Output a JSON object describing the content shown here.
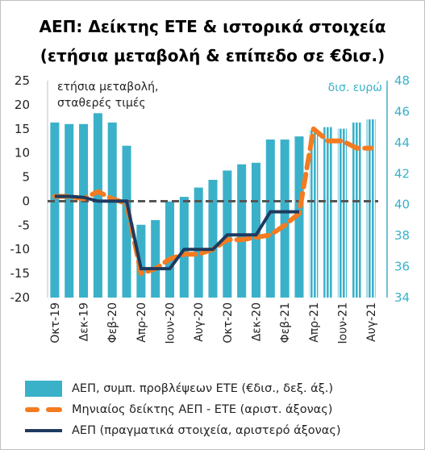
{
  "title_line1": "ΑΕΠ: Δείκτης ΕΤΕ & ιστορικά στοιχεία",
  "title_line2": "(ετήσια μεταβολή & επίπεδο σε €δισ.)",
  "colors": {
    "bars": "#3bb1c9",
    "monthly_index": "#f47b20",
    "actual": "#1f3a5f",
    "zero_line": "#555555",
    "right_axis": "#3bb1c9"
  },
  "chart_data": {
    "type": "bar+line",
    "title": "ΑΕΠ: Δείκτης ΕΤΕ & ιστορικά στοιχεία (ετήσια μεταβολή & επίπεδο σε €δισ.)",
    "left_axis": {
      "label_lines": [
        "ετήσια μεταβολή,",
        "σταθερές τιμές"
      ],
      "ylim": [
        -20,
        25
      ],
      "ticks": [
        -20,
        -15,
        -10,
        -5,
        0,
        5,
        10,
        15,
        20,
        25
      ]
    },
    "right_axis": {
      "label": "δισ. ευρώ",
      "ylim": [
        34,
        48
      ],
      "ticks": [
        34,
        36,
        38,
        40,
        42,
        44,
        46,
        48
      ]
    },
    "x_tick_labels": [
      "Οκτ-19",
      "Δεκ-19",
      "Φεβ-20",
      "Απρ-20",
      "Ιουν-20",
      "Αυγ-20",
      "Οκτ-20",
      "Δεκ-20",
      "Φεβ-21",
      "Απρ-21",
      "Ιουν-21",
      "Αυγ-21"
    ],
    "months": [
      "Οκτ-19",
      "Νοε-19",
      "Δεκ-19",
      "Ιαν-20",
      "Φεβ-20",
      "Μαρ-20",
      "Απρ-20",
      "Μαϊ-20",
      "Ιουν-20",
      "Ιουλ-20",
      "Αυγ-20",
      "Σεπ-20",
      "Οκτ-20",
      "Νοε-20",
      "Δεκ-20",
      "Ιαν-21",
      "Φεβ-21",
      "Μαρ-21",
      "Απρ-21",
      "Μαϊ-21",
      "Ιουν-21",
      "Ιουλ-21",
      "Αυγ-21"
    ],
    "series": [
      {
        "name": "ΑΕΠ, συμπ. προβλέψεων ΕΤΕ  (€δισ., δεξ. άξ.)",
        "type": "bar",
        "axis": "right",
        "values": [
          45.3,
          45.2,
          45.2,
          45.9,
          45.3,
          43.8,
          38.7,
          39.0,
          40.2,
          40.5,
          41.1,
          41.6,
          42.2,
          42.6,
          42.7,
          44.2,
          44.2,
          44.4,
          44.8,
          45.0,
          44.9,
          45.3,
          45.5
        ],
        "forecast_from": "Απρ-21"
      },
      {
        "name": "Μηνιαίος δείκτης ΑΕΠ - ΕΤΕ (αριστ. άξονας)",
        "type": "line",
        "style": "dashed",
        "axis": "left",
        "values": [
          1.0,
          1.0,
          0.5,
          2.0,
          0.5,
          -0.5,
          -15.0,
          -14.0,
          -12.0,
          -11.0,
          -11.0,
          -10.0,
          -8.0,
          -8.0,
          -7.5,
          -7.0,
          -5.0,
          -2.5,
          15.0,
          12.5,
          12.5,
          11.0,
          11.0
        ]
      },
      {
        "name": "ΑΕΠ (πραγματικά στοιχεία, αριστερό άξονας)",
        "type": "line",
        "axis": "left",
        "values": [
          1.0,
          1.0,
          0.8,
          0.0,
          0.0,
          0.0,
          -14.0,
          -14.0,
          -14.0,
          -10.0,
          -10.0,
          -10.0,
          -7.0,
          -7.0,
          -7.0,
          -2.2,
          -2.2,
          -2.2
        ]
      }
    ]
  },
  "legend": [
    {
      "key": "bars",
      "label": "ΑΕΠ, συμπ. προβλέψεων ΕΤΕ  (€δισ., δεξ. άξ.)"
    },
    {
      "key": "monthly",
      "label": "Μηνιαίος δείκτης ΑΕΠ - ΕΤΕ (αριστ. άξονας)"
    },
    {
      "key": "actual",
      "label": "ΑΕΠ (πραγματικά στοιχεία, αριστερό άξονας)"
    }
  ]
}
